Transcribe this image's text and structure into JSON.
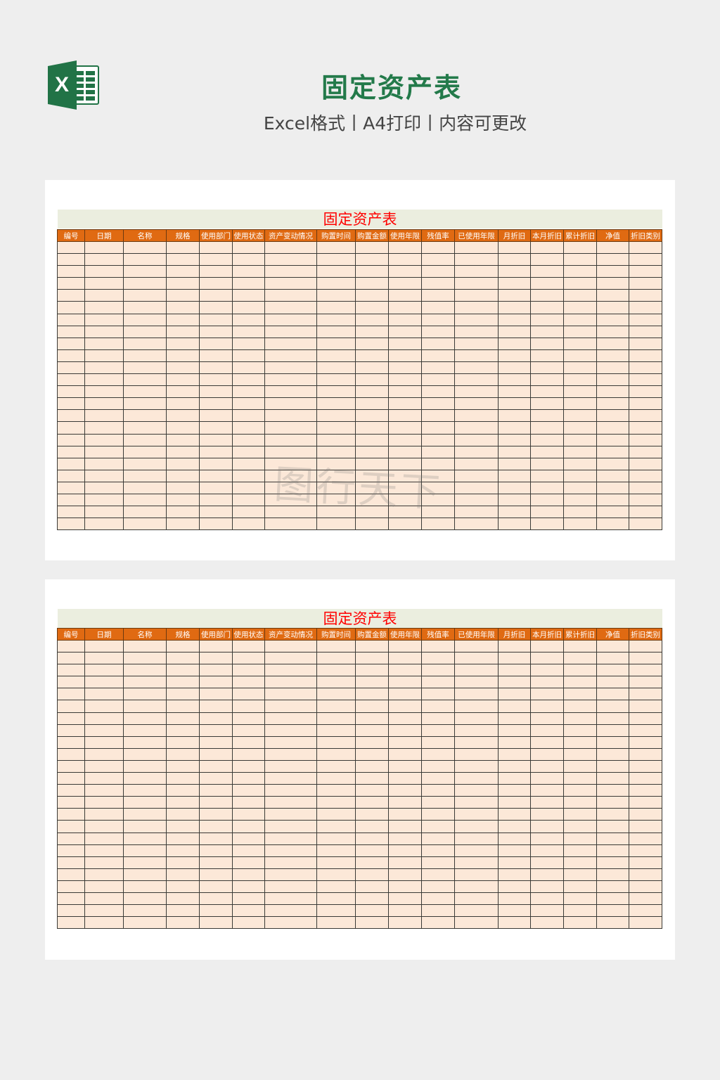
{
  "header": {
    "title": "固定资产表",
    "subtitle": "Excel格式丨A4打印丨内容可更改",
    "icon": "excel-icon"
  },
  "sheets": [
    {
      "title": "固定资产表"
    },
    {
      "title": "固定资产表"
    }
  ],
  "columns": [
    "编号",
    "日期",
    "名称",
    "规格",
    "使用部门",
    "使用状态",
    "资产变动情况",
    "购置时间",
    "购置金额",
    "使用年限",
    "残值率",
    "已使用年限",
    "月折旧",
    "本月折旧",
    "累计折旧",
    "净值",
    "折旧类别"
  ],
  "row_count": 24,
  "watermark": "图行天下",
  "colors": {
    "brand": "#237a4a",
    "header_bg": "#e06a12",
    "cell_bg": "#fce8d8",
    "sheet_title": "#ff0000",
    "band_bg": "#ebeedf"
  }
}
